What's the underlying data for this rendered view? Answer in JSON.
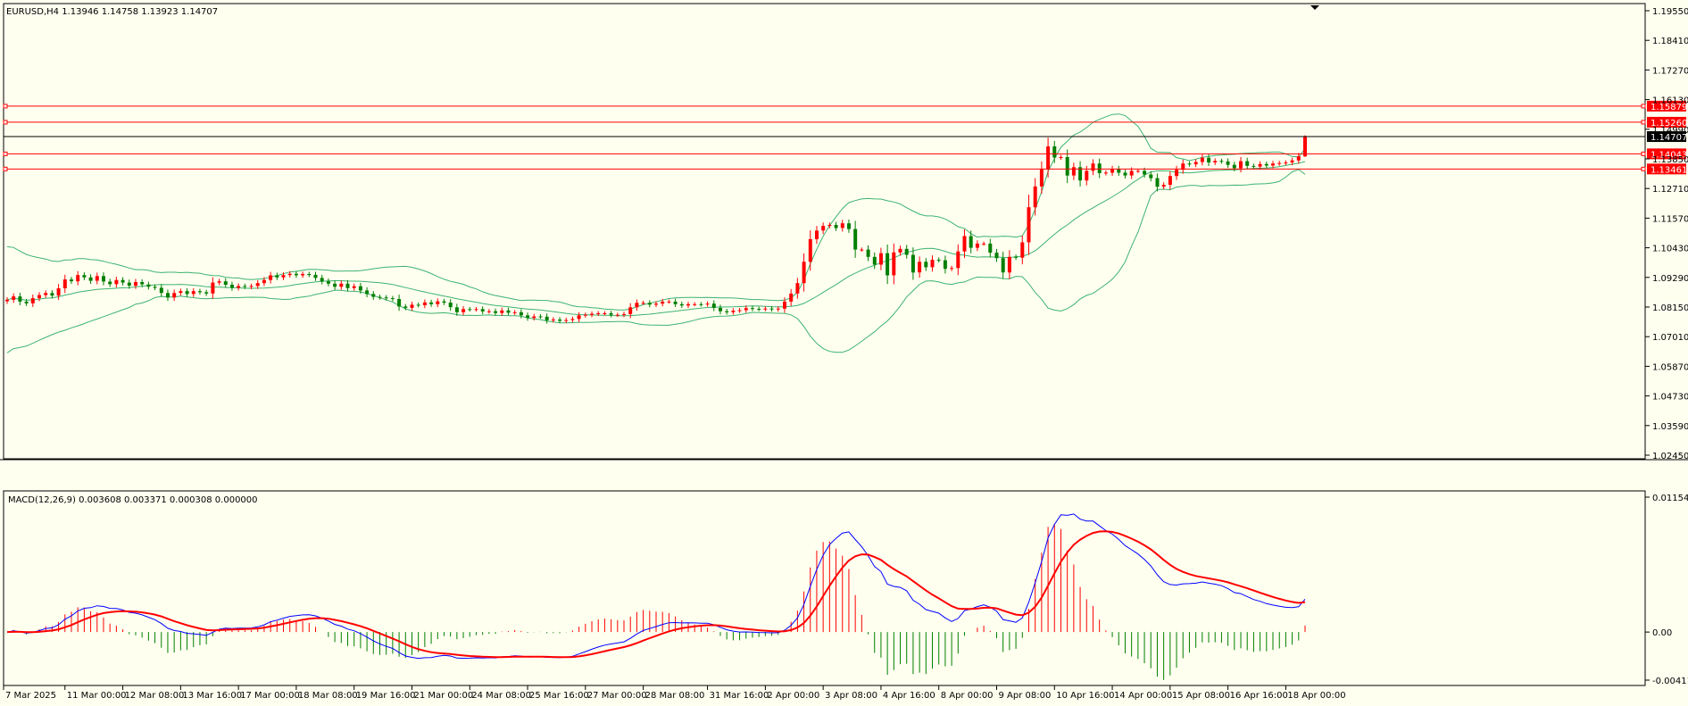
{
  "header": {
    "title": "EURUSD,H4  1.13946 1.14758 1.13923 1.14707"
  },
  "colors": {
    "background": "#fffff0",
    "bull": "#007f00",
    "bear": "#ff0000",
    "bands": "#3cb371",
    "level_line": "#ff0000",
    "price_line": "#000000",
    "macd_main": "#0000ff",
    "macd_signal": "#ff0000"
  },
  "chart_data": [
    {
      "type": "candlestick",
      "symbol": "EURUSD",
      "timeframe": "H4",
      "ohlc_current": {
        "open": 1.13946,
        "high": 1.14758,
        "low": 1.13923,
        "close": 1.14707
      },
      "ylim": [
        1.0245,
        1.1955
      ],
      "y_ticks": [
        "1.19550",
        "1.18410",
        "1.17270",
        "1.16130",
        "1.14990",
        "1.13850",
        "1.12710",
        "1.11570",
        "1.10430",
        "1.09290",
        "1.08150",
        "1.07010",
        "1.05870",
        "1.04730",
        "1.03590",
        "1.02450"
      ],
      "x_ticks": [
        "7 Mar 2025",
        "11 Mar 00:00",
        "12 Mar 08:00",
        "13 Mar 16:00",
        "17 Mar 00:00",
        "18 Mar 08:00",
        "19 Mar 16:00",
        "21 Mar 00:00",
        "24 Mar 08:00",
        "25 Mar 16:00",
        "27 Mar 00:00",
        "28 Mar 08:00",
        "31 Mar 16:00",
        "2 Apr 00:00",
        "3 Apr 08:00",
        "4 Apr 16:00",
        "8 Apr 00:00",
        "9 Apr 08:00",
        "10 Apr 16:00",
        "14 Apr 00:00",
        "15 Apr 08:00",
        "16 Apr 16:00",
        "18 Apr 00:00"
      ],
      "closes": [
        1.0843,
        1.0856,
        1.0836,
        1.0829,
        1.0849,
        1.0861,
        1.0869,
        1.0859,
        1.0887,
        1.0921,
        1.0914,
        1.0938,
        1.0929,
        1.0916,
        1.0934,
        1.0913,
        1.0903,
        1.0919,
        1.0909,
        1.0897,
        1.0911,
        1.0902,
        1.0893,
        1.0889,
        1.0869,
        1.0852,
        1.0869,
        1.0876,
        1.0865,
        1.0876,
        1.0872,
        1.0867,
        1.0909,
        1.0914,
        1.0901,
        1.0889,
        1.0896,
        1.0893,
        1.0896,
        1.0907,
        1.0919,
        1.0937,
        1.0929,
        1.0938,
        1.0943,
        1.0937,
        1.0942,
        1.0939,
        1.0927,
        1.0914,
        1.0905,
        1.0893,
        1.0905,
        1.0888,
        1.0895,
        1.0879,
        1.0865,
        1.0854,
        1.0852,
        1.0849,
        1.0846,
        1.0817,
        1.0812,
        1.0824,
        1.0822,
        1.0833,
        1.0826,
        1.0837,
        1.0832,
        1.0814,
        1.0795,
        1.0807,
        1.0806,
        1.0807,
        1.0798,
        1.0799,
        1.0792,
        1.0802,
        1.0793,
        1.0795,
        1.0783,
        1.0773,
        1.0779,
        1.0778,
        1.0764,
        1.0767,
        1.0762,
        1.0765,
        1.0769,
        1.0783,
        1.0785,
        1.0789,
        1.0791,
        1.0791,
        1.0785,
        1.0785,
        1.0788,
        1.0814,
        1.0831,
        1.0831,
        1.0824,
        1.0828,
        1.0836,
        1.0836,
        1.0826,
        1.0821,
        1.0826,
        1.0826,
        1.0825,
        1.0828,
        1.0812,
        1.0799,
        1.0795,
        1.0801,
        1.0803,
        1.0811,
        1.0808,
        1.0807,
        1.0809,
        1.0806,
        1.0809,
        1.0836,
        1.0867,
        1.0907,
        1.0989,
        1.1076,
        1.1109,
        1.1127,
        1.1131,
        1.1119,
        1.1137,
        1.1115,
        1.1036,
        1.1036,
        1.1008,
        1.0978,
        1.1022,
        1.0937,
        1.1025,
        1.1039,
        1.1016,
        1.0948,
        1.0989,
        1.0968,
        1.0997,
        1.0995,
        1.0962,
        1.0965,
        1.1029,
        1.1088,
        1.1043,
        1.1059,
        1.1059,
        1.1024,
        1.1003,
        1.0948,
        1.1008,
        1.1005,
        1.1064,
        1.1199,
        1.1279,
        1.1347,
        1.1433,
        1.139,
        1.1392,
        1.1321,
        1.1353,
        1.1302,
        1.1339,
        1.1367,
        1.133,
        1.1332,
        1.1346,
        1.1332,
        1.1321,
        1.1339,
        1.1339,
        1.1325,
        1.1311,
        1.1278,
        1.1285,
        1.1319,
        1.1343,
        1.1367,
        1.1364,
        1.1373,
        1.1389,
        1.1371,
        1.1377,
        1.1375,
        1.1362,
        1.1349,
        1.1376,
        1.1358,
        1.1355,
        1.1365,
        1.1359,
        1.1367,
        1.1369,
        1.1371,
        1.1379,
        1.1395,
        1.1471
      ],
      "overlays": {
        "bollinger_upper_start": 1.094,
        "bollinger_lower_start": 1.053,
        "bollinger_upper_peak": 1.1522,
        "bollinger_lower_min": 1.068
      },
      "levels": [
        {
          "price": 1.15879,
          "label": "1.15879",
          "kind": "resistance"
        },
        {
          "price": 1.1526,
          "label": "1.15260",
          "kind": "resistance"
        },
        {
          "price": 1.14707,
          "label": "1.14707",
          "kind": "current"
        },
        {
          "price": 1.14043,
          "label": "1.14043",
          "kind": "support"
        },
        {
          "price": 1.13461,
          "label": "1.13461",
          "kind": "support"
        }
      ]
    },
    {
      "type": "macd",
      "title": "MACD(12,26,9) 0.003608 0.003371 0.000308 0.000000",
      "params": [
        12,
        26,
        9
      ],
      "ylim": [
        -0.004115,
        0.011545
      ],
      "y_ticks": [
        "0.011545",
        "0.00",
        "-0.004115"
      ]
    }
  ]
}
